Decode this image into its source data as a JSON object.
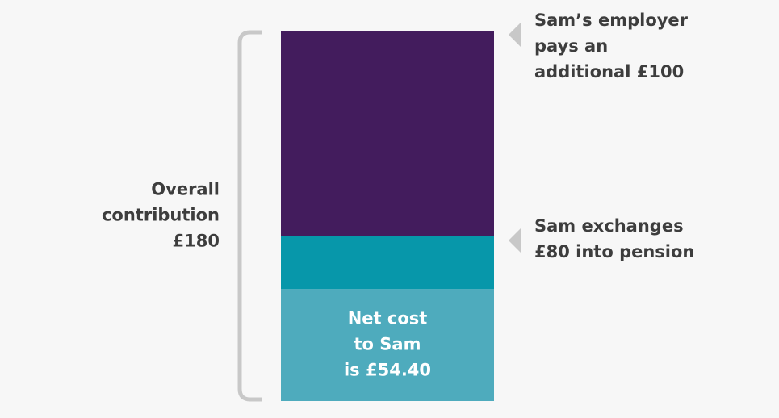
{
  "chart_data": {
    "type": "stacked-bar",
    "series": [
      {
        "color": "#4eabbd",
        "values": [
          54.4
        ]
      },
      {
        "color": "#0797aa",
        "values": [
          25.6
        ]
      },
      {
        "color": "#431c5d",
        "values": [
          100
        ]
      }
    ],
    "ylim": [
      0,
      180
    ],
    "inner_label": [
      "Net cost",
      "to Sam",
      "is £54.40"
    ],
    "total_label": [
      "Overall",
      "contribution",
      "£180"
    ],
    "annotations": [
      [
        "Sam’s employer",
        "pays an",
        "additional £100"
      ],
      [
        "Sam exchanges",
        "£80 into pension"
      ]
    ]
  }
}
